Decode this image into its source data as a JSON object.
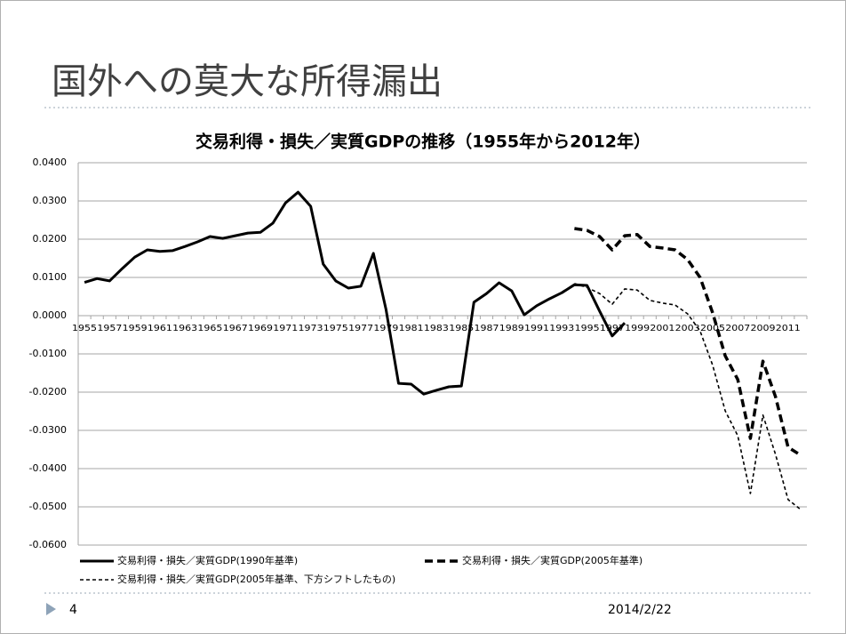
{
  "slide_title": "国外への莫大な所得漏出",
  "page_number": "4",
  "date": "2014/2/22",
  "chart_data": {
    "type": "line",
    "title": "交易利得・損失／実質GDPの推移（1955年から2012年）",
    "categories": [
      "1955",
      null,
      "1957",
      null,
      "1959",
      null,
      "1961",
      null,
      "1963",
      null,
      "1965",
      null,
      "1967",
      null,
      "1969",
      null,
      "1971",
      null,
      "1973",
      null,
      "1975",
      null,
      "1977",
      null,
      "1979",
      null,
      "1981",
      null,
      "1983",
      null,
      "1985",
      null,
      "1987",
      null,
      "1989",
      null,
      "1991",
      null,
      "1993",
      null,
      "1995",
      null,
      "1997",
      null,
      "1999",
      null,
      "2001",
      null,
      "2003",
      null,
      "2005",
      null,
      "2007",
      null,
      "2009",
      null,
      "2011",
      null
    ],
    "ylim": [
      -0.06,
      0.04
    ],
    "yticks": [
      {
        "value": -0.06,
        "label": "-0.0600"
      },
      {
        "value": -0.05,
        "label": "-0.0500"
      },
      {
        "value": -0.04,
        "label": "-0.0400"
      },
      {
        "value": -0.03,
        "label": "-0.0300"
      },
      {
        "value": -0.02,
        "label": "-0.0200"
      },
      {
        "value": -0.01,
        "label": "-0.0100"
      },
      {
        "value": 0,
        "label": "0.0000"
      },
      {
        "value": 0.01,
        "label": "0.0100"
      },
      {
        "value": 0.02,
        "label": "0.0200"
      },
      {
        "value": 0.03,
        "label": "0.0300"
      },
      {
        "value": 0.04,
        "label": "0.0400"
      }
    ],
    "grid": true,
    "legend": "bottom",
    "series": [
      {
        "name": "交易利得・損失／実質GDP(1990年基準)",
        "color": "#000000",
        "line_style": "solid",
        "values": [
          0.0087,
          0.0097,
          0.0091,
          0.0123,
          0.0153,
          0.0172,
          0.0168,
          0.017,
          0.0181,
          0.0193,
          0.0207,
          0.0202,
          0.0209,
          0.0216,
          0.0218,
          0.0242,
          0.0295,
          0.0323,
          0.0286,
          0.0135,
          0.0091,
          0.0072,
          0.0077,
          0.0163,
          0.0016,
          -0.0177,
          -0.0179,
          -0.0205,
          -0.0195,
          -0.0186,
          -0.0184,
          0.0035,
          0.0058,
          0.0086,
          0.0065,
          0.0002,
          0.0026,
          0.0044,
          0.006,
          0.0081,
          0.0079,
          0.0012,
          -0.0053,
          -0.0019,
          null,
          null,
          null,
          null,
          null,
          null,
          null,
          null,
          null,
          null,
          null,
          null,
          null,
          null
        ]
      },
      {
        "name": "交易利得・損失／実質GDP(2005年基準)",
        "color": "#000000",
        "line_style": "dashed",
        "values": [
          null,
          null,
          null,
          null,
          null,
          null,
          null,
          null,
          null,
          null,
          null,
          null,
          null,
          null,
          null,
          null,
          null,
          null,
          null,
          null,
          null,
          null,
          null,
          null,
          null,
          null,
          null,
          null,
          null,
          null,
          null,
          null,
          null,
          null,
          null,
          null,
          null,
          null,
          null,
          0.0228,
          0.0223,
          0.0207,
          0.0172,
          0.0209,
          0.0212,
          0.0181,
          0.0177,
          0.0172,
          0.0147,
          0.01,
          0.0007,
          -0.0105,
          -0.0167,
          -0.0321,
          -0.0119,
          -0.0212,
          -0.0344,
          -0.0365
        ]
      },
      {
        "name": "交易利得・損失／実質GDP(2005年基準、下方シフトしたもの)",
        "color": "#000000",
        "line_style": "dotted",
        "values": [
          null,
          null,
          null,
          null,
          null,
          null,
          null,
          null,
          null,
          null,
          null,
          null,
          null,
          null,
          null,
          null,
          null,
          null,
          null,
          null,
          null,
          null,
          null,
          null,
          null,
          null,
          null,
          null,
          null,
          null,
          null,
          null,
          null,
          null,
          null,
          null,
          null,
          null,
          null,
          0.0084,
          0.0074,
          0.0058,
          0.003,
          0.007,
          0.0067,
          0.004,
          0.0033,
          0.0028,
          0.0005,
          -0.004,
          -0.013,
          -0.0249,
          -0.0314,
          -0.0465,
          -0.026,
          -0.0363,
          -0.0481,
          -0.0507
        ]
      }
    ]
  }
}
